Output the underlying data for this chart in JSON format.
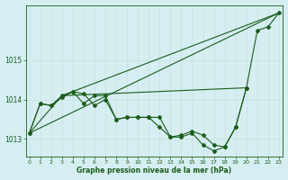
{
  "background_color": "#d6eef2",
  "grid_color": "#c8dde0",
  "line_color": "#1a5c1a",
  "title": "Graphe pression niveau de la mer (hPa)",
  "ylim": [
    1012.55,
    1016.4
  ],
  "yticks": [
    1013,
    1014,
    1015
  ],
  "xlim": [
    -0.3,
    23.3
  ],
  "xticks": [
    0,
    1,
    2,
    3,
    4,
    5,
    6,
    7,
    8,
    9,
    10,
    11,
    12,
    13,
    14,
    15,
    16,
    17,
    18,
    19,
    20,
    21,
    22,
    23
  ],
  "series_detail": [
    {
      "x": [
        0,
        1,
        2,
        3,
        4,
        5,
        6,
        7,
        8,
        9,
        10,
        11,
        12,
        13,
        14,
        15,
        16,
        17,
        18,
        19,
        20,
        21,
        22,
        23
      ],
      "y": [
        1013.15,
        1013.9,
        1013.85,
        1014.1,
        1014.2,
        1013.9,
        1014.1,
        1014.1,
        1013.5,
        1013.55,
        1013.55,
        1013.55,
        1013.55,
        1013.05,
        1013.05,
        1013.15,
        1012.85,
        1012.7,
        1012.8,
        1013.3,
        1014.3,
        1015.75,
        1015.85,
        1016.2
      ],
      "marker": true
    },
    {
      "x": [
        0,
        1,
        2,
        3,
        4,
        5,
        6,
        7,
        8,
        9,
        10,
        11,
        12,
        13,
        14,
        15,
        16,
        17,
        18,
        19,
        20
      ],
      "y": [
        1013.15,
        1013.9,
        1013.85,
        1014.05,
        1014.2,
        1014.15,
        1013.85,
        1014.0,
        1013.5,
        1013.55,
        1013.55,
        1013.55,
        1013.3,
        1013.05,
        1013.1,
        1013.2,
        1013.1,
        1012.85,
        1012.8,
        1013.3,
        1014.3
      ],
      "marker": true
    },
    {
      "x": [
        0,
        3,
        20
      ],
      "y": [
        1013.15,
        1014.1,
        1014.3
      ],
      "marker": false
    },
    {
      "x": [
        0,
        23
      ],
      "y": [
        1013.15,
        1016.2
      ],
      "marker": false
    },
    {
      "x": [
        3,
        23
      ],
      "y": [
        1014.1,
        1016.2
      ],
      "marker": false
    }
  ]
}
